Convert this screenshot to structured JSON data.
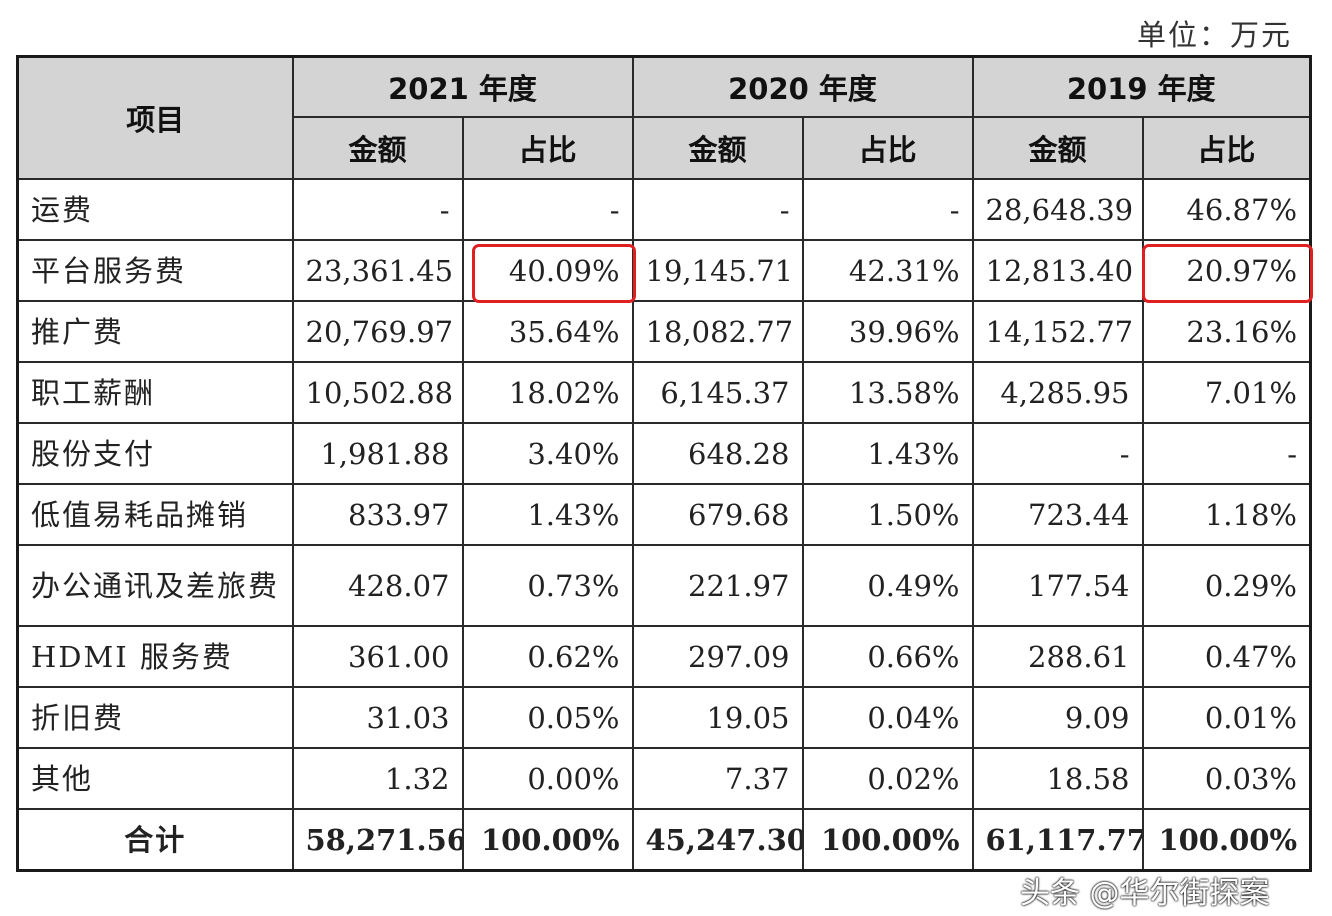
{
  "unit_label": "单位：万元",
  "header": {
    "item_label": "项目",
    "years": [
      "2021 年度",
      "2020 年度",
      "2019 年度"
    ],
    "amount_label": "金额",
    "ratio_label": "占比"
  },
  "rows": [
    {
      "item": "运费",
      "cells": [
        "-",
        "-",
        "-",
        "-",
        "28,648.39",
        "46.87%"
      ]
    },
    {
      "item": "平台服务费",
      "cells": [
        "23,361.45",
        "40.09%",
        "19,145.71",
        "42.31%",
        "12,813.40",
        "20.97%"
      ]
    },
    {
      "item": "推广费",
      "cells": [
        "20,769.97",
        "35.64%",
        "18,082.77",
        "39.96%",
        "14,152.77",
        "23.16%"
      ]
    },
    {
      "item": "职工薪酬",
      "cells": [
        "10,502.88",
        "18.02%",
        "6,145.37",
        "13.58%",
        "4,285.95",
        "7.01%"
      ]
    },
    {
      "item": "股份支付",
      "cells": [
        "1,981.88",
        "3.40%",
        "648.28",
        "1.43%",
        "-",
        "-"
      ]
    },
    {
      "item": "低值易耗品摊销",
      "cells": [
        "833.97",
        "1.43%",
        "679.68",
        "1.50%",
        "723.44",
        "1.18%"
      ]
    },
    {
      "item": "办公通讯及差旅费",
      "cells": [
        "428.07",
        "0.73%",
        "221.97",
        "0.49%",
        "177.54",
        "0.29%"
      ]
    },
    {
      "item": "HDMI 服务费",
      "cells": [
        "361.00",
        "0.62%",
        "297.09",
        "0.66%",
        "288.61",
        "0.47%"
      ]
    },
    {
      "item": "折旧费",
      "cells": [
        "31.03",
        "0.05%",
        "19.05",
        "0.04%",
        "9.09",
        "0.01%"
      ]
    },
    {
      "item": "其他",
      "cells": [
        "1.32",
        "0.00%",
        "7.37",
        "0.02%",
        "18.58",
        "0.03%"
      ]
    }
  ],
  "total": {
    "item": "合计",
    "cells": [
      "58,271.56",
      "100.00%",
      "45,247.30",
      "100.00%",
      "61,117.77",
      "100.00%"
    ]
  },
  "highlight_color": "#e02020",
  "watermark": "头条 @华尔街探案"
}
